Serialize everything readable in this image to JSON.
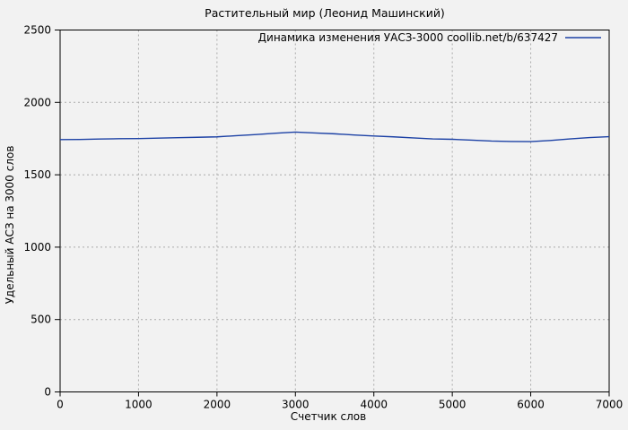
{
  "chart": {
    "title": "Растительный мир (Леонид Машинский)",
    "xlabel": "Счетчик слов",
    "ylabel": "Удельный АСЗ на 3000 слов",
    "legend_label": "Динамика изменения УАСЗ-3000 coollib.net/b/637427"
  },
  "colors": {
    "background": "#f2f2f2",
    "plot_border": "#000000",
    "grid": "#aaaaaa",
    "series_line": "#1c41a5",
    "text": "#000000"
  },
  "chart_data": {
    "type": "line",
    "title": "Растительный мир (Леонид Машинский)",
    "xlabel": "Счетчик слов",
    "ylabel": "Удельный АСЗ на 3000 слов",
    "xlim": [
      0,
      7000
    ],
    "ylim": [
      0,
      2500
    ],
    "xticks": [
      0,
      1000,
      2000,
      3000,
      4000,
      5000,
      6000,
      7000
    ],
    "yticks": [
      0,
      500,
      1000,
      1500,
      2000,
      2500
    ],
    "grid": "dashed, both axes at major ticks",
    "legend_position": "top-right inside plot",
    "series": [
      {
        "name": "Динамика изменения УАСЗ-3000 coollib.net/b/637427",
        "color": "#1c41a5",
        "x": [
          0,
          250,
          500,
          750,
          1000,
          1250,
          1500,
          1750,
          2000,
          2250,
          2500,
          2750,
          3000,
          3250,
          3500,
          3750,
          4000,
          4250,
          4500,
          4750,
          5000,
          5250,
          5500,
          5750,
          6000,
          6250,
          6500,
          6750,
          7000
        ],
        "y": [
          1743,
          1744,
          1747,
          1749,
          1750,
          1753,
          1756,
          1759,
          1762,
          1770,
          1778,
          1787,
          1795,
          1789,
          1783,
          1775,
          1768,
          1762,
          1755,
          1748,
          1745,
          1739,
          1733,
          1730,
          1729,
          1737,
          1748,
          1757,
          1763
        ]
      }
    ]
  }
}
